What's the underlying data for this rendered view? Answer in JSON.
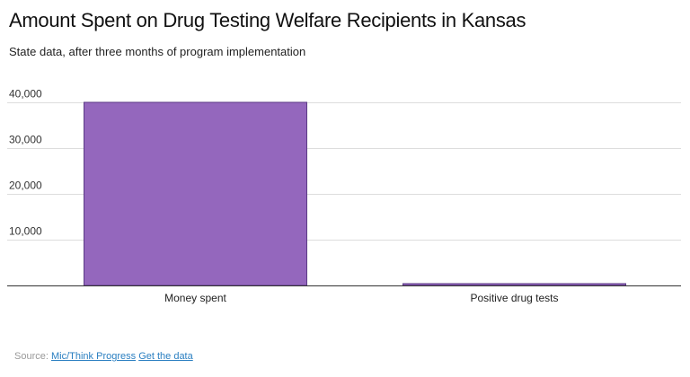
{
  "chart_data": {
    "type": "bar",
    "title": "Amount Spent on Drug Testing Welfare Recipients in Kansas",
    "subtitle": "State data, after three months of program implementation",
    "categories": [
      "Money spent",
      "Positive drug tests"
    ],
    "values": [
      40000,
      20
    ],
    "ylim": [
      0,
      40000
    ],
    "yticks": [
      10000,
      20000,
      30000,
      40000
    ],
    "ytick_labels": [
      "10,000",
      "20,000",
      "30,000",
      "40,000"
    ],
    "xlabel": "",
    "ylabel": "",
    "grid": true,
    "bar_color": "#9467bd",
    "bar_edge_color": "#5b3a85"
  },
  "footer": {
    "source_prefix": "Source:",
    "source_link": "Mic/Think Progress",
    "data_link": "Get the data"
  }
}
